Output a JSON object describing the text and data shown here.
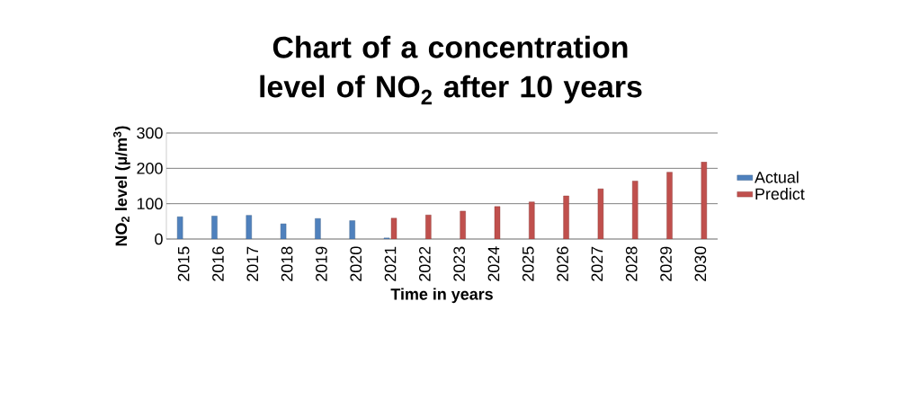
{
  "chart_data": {
    "type": "bar",
    "title": "Chart of a concentration level of NO$_{2}$ after 10 years",
    "xlabel": "Time  in years",
    "ylabel": "NO$_{2}$ level (µ/m$^{3}$)",
    "categories": [
      "2015",
      "2016",
      "2017",
      "2018",
      "2019",
      "2020",
      "2021",
      "2022",
      "2023",
      "2024",
      "2025",
      "2026",
      "2027",
      "2028",
      "2029",
      "2030"
    ],
    "series": [
      {
        "name": "Actual",
        "color": "#4f81bd",
        "values": [
          63,
          65,
          67,
          43,
          58,
          52,
          3,
          null,
          null,
          null,
          null,
          null,
          null,
          null,
          null,
          null
        ]
      },
      {
        "name": "Predict",
        "color": "#c0504d",
        "values": [
          null,
          null,
          null,
          null,
          null,
          null,
          59,
          68,
          79,
          92,
          105,
          122,
          142,
          164,
          189,
          218
        ]
      }
    ],
    "ylim": [
      0,
      300
    ],
    "yticks": [
      0,
      100,
      200,
      300
    ],
    "grid": "y",
    "legend": "right"
  }
}
